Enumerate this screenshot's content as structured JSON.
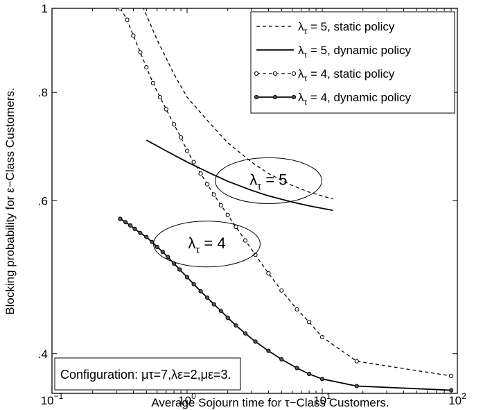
{
  "chart_data": {
    "type": "line",
    "title": "",
    "xlabel": "Average Sojourn time for τ−Class Customers.",
    "ylabel": "Blocking probability for ε−Class Customers.",
    "xscale": "log",
    "yscale": "log",
    "xlim": [
      0.1,
      100
    ],
    "ylim": [
      0.36,
      1
    ],
    "x_ticks": [
      {
        "value": 0.1,
        "base": "10",
        "exp": "−1"
      },
      {
        "value": 1,
        "base": "10",
        "exp": "0"
      },
      {
        "value": 10,
        "base": "10",
        "exp": "1"
      },
      {
        "value": 100,
        "base": "10",
        "exp": "2"
      }
    ],
    "y_ticks": [
      {
        "value": 0.4,
        "label": ".4"
      },
      {
        "value": 0.6,
        "label": ".6"
      },
      {
        "value": 0.8,
        "label": ".8"
      },
      {
        "value": 1,
        "label": "1"
      }
    ],
    "grid": false,
    "legend_position": "top-right",
    "series": [
      {
        "name": "λτ = 5, static policy",
        "legend": {
          "main": "λ",
          "sub": "τ",
          "rest": " = 5, static policy"
        },
        "style": "dashed",
        "marker": "none",
        "points": [
          [
            0.45,
            1.02
          ],
          [
            0.6,
            0.92
          ],
          [
            0.8,
            0.84
          ],
          [
            1.0,
            0.79
          ],
          [
            1.5,
            0.735
          ],
          [
            2.0,
            0.7
          ],
          [
            3.0,
            0.665
          ],
          [
            4.0,
            0.645
          ],
          [
            6.0,
            0.625
          ],
          [
            8.0,
            0.614
          ],
          [
            12.0,
            0.603
          ]
        ]
      },
      {
        "name": "λτ = 5, dynamic policy",
        "legend": {
          "main": "λ",
          "sub": "τ",
          "rest": " = 5, dynamic policy"
        },
        "style": "solid",
        "marker": "none",
        "points": [
          [
            0.5,
            0.705
          ],
          [
            0.7,
            0.685
          ],
          [
            1.0,
            0.665
          ],
          [
            1.5,
            0.645
          ],
          [
            2.0,
            0.632
          ],
          [
            3.0,
            0.617
          ],
          [
            4.0,
            0.608
          ],
          [
            6.0,
            0.598
          ],
          [
            8.0,
            0.592
          ],
          [
            12.0,
            0.585
          ]
        ]
      },
      {
        "name": "λτ = 4, static policy",
        "legend": {
          "main": "λ",
          "sub": "τ",
          "rest": " = 4, static policy"
        },
        "style": "dashed",
        "marker": "dot",
        "points": [
          [
            0.32,
            1.0
          ],
          [
            0.36,
            0.97
          ],
          [
            0.4,
            0.93
          ],
          [
            0.45,
            0.89
          ],
          [
            0.5,
            0.855
          ],
          [
            0.56,
            0.82
          ],
          [
            0.63,
            0.79
          ],
          [
            0.7,
            0.765
          ],
          [
            0.8,
            0.735
          ],
          [
            0.9,
            0.71
          ],
          [
            1.0,
            0.685
          ],
          [
            1.12,
            0.665
          ],
          [
            1.26,
            0.645
          ],
          [
            1.41,
            0.627
          ],
          [
            1.58,
            0.61
          ],
          [
            1.78,
            0.593
          ],
          [
            2.0,
            0.578
          ],
          [
            2.3,
            0.56
          ],
          [
            2.7,
            0.54
          ],
          [
            3.2,
            0.52
          ],
          [
            4.0,
            0.495
          ],
          [
            5.0,
            0.473
          ],
          [
            6.5,
            0.45
          ],
          [
            8.0,
            0.435
          ],
          [
            10.0,
            0.418
          ],
          [
            18.0,
            0.392
          ],
          [
            90.0,
            0.377
          ]
        ]
      },
      {
        "name": "λτ = 4, dynamic policy",
        "legend": {
          "main": "λ",
          "sub": "τ",
          "rest": " = 4, dynamic policy"
        },
        "style": "solid",
        "marker": "dot",
        "points": [
          [
            0.32,
            0.572
          ],
          [
            0.35,
            0.567
          ],
          [
            0.38,
            0.562
          ],
          [
            0.41,
            0.557
          ],
          [
            0.45,
            0.551
          ],
          [
            0.5,
            0.545
          ],
          [
            0.55,
            0.538
          ],
          [
            0.6,
            0.531
          ],
          [
            0.66,
            0.524
          ],
          [
            0.72,
            0.517
          ],
          [
            0.8,
            0.508
          ],
          [
            0.88,
            0.5
          ],
          [
            1.0,
            0.49
          ],
          [
            1.12,
            0.481
          ],
          [
            1.26,
            0.472
          ],
          [
            1.41,
            0.464
          ],
          [
            1.58,
            0.456
          ],
          [
            1.78,
            0.448
          ],
          [
            2.0,
            0.44
          ],
          [
            2.3,
            0.431
          ],
          [
            2.7,
            0.422
          ],
          [
            3.2,
            0.413
          ],
          [
            4.0,
            0.403
          ],
          [
            5.0,
            0.394
          ],
          [
            6.5,
            0.385
          ],
          [
            8.0,
            0.379
          ],
          [
            10.0,
            0.374
          ],
          [
            18.0,
            0.367
          ],
          [
            90.0,
            0.363
          ]
        ]
      }
    ],
    "annotations": [
      {
        "main": "λ",
        "sub": "τ",
        "rest": " = 5",
        "x": 4.0,
        "y": 0.633
      },
      {
        "main": "λ",
        "sub": "τ",
        "rest": " = 4",
        "x": 1.4,
        "y": 0.535
      }
    ],
    "config_box": {
      "text": "Configuration: μτ=7,λε=2,με=3."
    }
  }
}
